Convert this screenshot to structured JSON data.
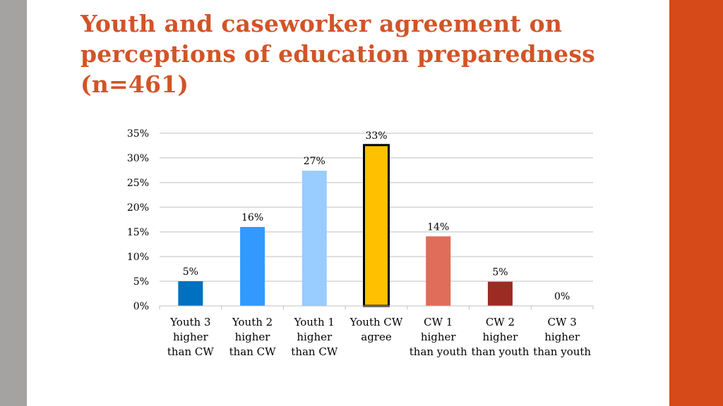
{
  "slide": {
    "title": "Youth and caseworker agreement on perceptions of education preparedness (n=461)"
  },
  "chart_data": {
    "type": "bar",
    "categories": [
      [
        "Youth 3",
        "higher",
        "than CW"
      ],
      [
        "Youth 2",
        "higher",
        "than CW"
      ],
      [
        "Youth 1",
        "higher",
        "than CW"
      ],
      [
        "Youth CW",
        "agree"
      ],
      [
        "CW 1",
        "higher",
        "than youth"
      ],
      [
        "CW 2",
        "higher",
        "than youth"
      ],
      [
        "CW 3",
        "higher",
        "than youth"
      ]
    ],
    "values": [
      5,
      16,
      27.4,
      32.6,
      14.1,
      4.9,
      0
    ],
    "data_labels": [
      "5%",
      "16%",
      "27%",
      "33%",
      "14%",
      "5%",
      "0%"
    ],
    "bar_colors": [
      "#0070c0",
      "#3399ff",
      "#99ccff",
      "#ffc000",
      "#e06c5a",
      "#9b2b23",
      "#9b2b23"
    ],
    "highlight": {
      "index": 3,
      "stroke": "#000000"
    },
    "ylim": [
      0,
      35
    ],
    "yticks": [
      0,
      5,
      10,
      15,
      20,
      25,
      30,
      35
    ],
    "ytick_labels": [
      "0%",
      "5%",
      "10%",
      "15%",
      "20%",
      "25%",
      "30%",
      "35%"
    ],
    "grid": true,
    "xlabel": "",
    "ylabel": ""
  },
  "colors": {
    "title": "#d25427",
    "accent_right": "#d54a18",
    "accent_left": "#a5a2a2",
    "gridline": "#bfbfbf"
  }
}
